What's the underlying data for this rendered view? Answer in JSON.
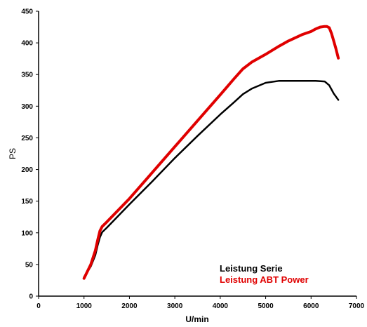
{
  "chart_data": {
    "type": "line",
    "title": "",
    "xlabel": "U/min",
    "ylabel": "PS",
    "xlim": [
      0,
      7000
    ],
    "ylim": [
      0,
      450
    ],
    "xticks": [
      0,
      1000,
      2000,
      3000,
      4000,
      5000,
      6000,
      7000
    ],
    "yticks": [
      0,
      50,
      100,
      150,
      200,
      250,
      300,
      350,
      400,
      450
    ],
    "grid": false,
    "legend_position": "bottom-right",
    "series": [
      {
        "name": "Leistung Serie",
        "color": "#000000",
        "x": [
          1000,
          1150,
          1250,
          1300,
          1350,
          1400,
          1500,
          2000,
          2500,
          3000,
          3500,
          4000,
          4300,
          4500,
          4700,
          5000,
          5300,
          5500,
          6000,
          6100,
          6300,
          6400,
          6500,
          6600
        ],
        "y": [
          30,
          47,
          65,
          80,
          93,
          101,
          108,
          145,
          181,
          218,
          253,
          287,
          306,
          319,
          328,
          337,
          340,
          340,
          340,
          340,
          339,
          333,
          320,
          310
        ]
      },
      {
        "name": "Leistung ABT Power",
        "color": "#e00000",
        "x": [
          1000,
          1150,
          1250,
          1300,
          1350,
          1400,
          1500,
          2000,
          2500,
          3000,
          3500,
          4000,
          4300,
          4500,
          4700,
          5000,
          5300,
          5500,
          5800,
          6000,
          6100,
          6200,
          6300,
          6350,
          6400,
          6450,
          6500,
          6550,
          6600
        ],
        "y": [
          28,
          50,
          72,
          88,
          103,
          110,
          117,
          154,
          195,
          236,
          277,
          318,
          343,
          359,
          370,
          382,
          395,
          403,
          413,
          418,
          422,
          425,
          426,
          426,
          424,
          415,
          403,
          390,
          376
        ]
      }
    ]
  }
}
